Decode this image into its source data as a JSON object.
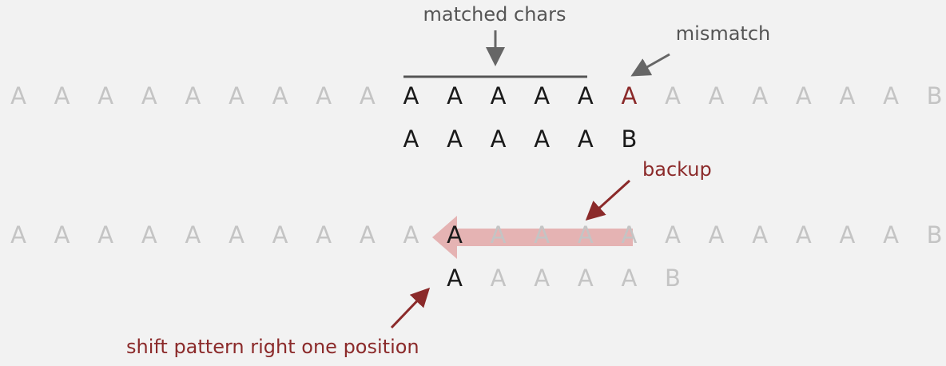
{
  "labels": {
    "matched": "matched chars",
    "mismatch": "mismatch",
    "backup": "backup",
    "shift": "shift pattern right one position"
  },
  "row1_text": [
    "A",
    "A",
    "A",
    "A",
    "A",
    "A",
    "A",
    "A",
    "A",
    "A",
    "A",
    "A",
    "A",
    "A",
    "A",
    "A",
    "A",
    "A",
    "A",
    "A",
    "A",
    "B"
  ],
  "row1_pattern": [
    "A",
    "A",
    "A",
    "A",
    "A",
    "B"
  ],
  "row2_text": [
    "A",
    "A",
    "A",
    "A",
    "A",
    "A",
    "A",
    "A",
    "A",
    "A",
    "A",
    "A",
    "A",
    "A",
    "A",
    "A",
    "A",
    "A",
    "A",
    "A",
    "A",
    "B"
  ],
  "row2_pattern": [
    "A",
    "A",
    "A",
    "A",
    "A",
    "B"
  ],
  "colors": {
    "faint": "#c4c4c4",
    "dark": "#1a1a1a",
    "accent_red": "#8b2a2a",
    "gray_arrow": "#666666",
    "backup_band": "#e5b3b3"
  }
}
